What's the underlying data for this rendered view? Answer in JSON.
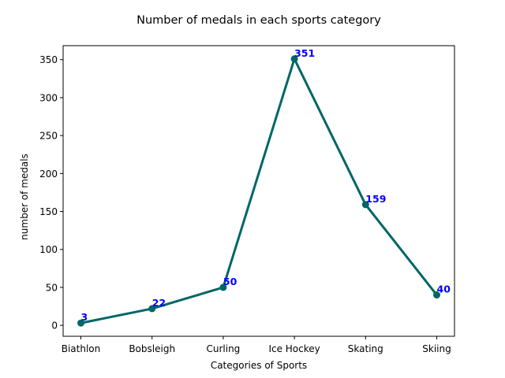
{
  "chart_data": {
    "type": "line",
    "title": "Number of medals in each sports category",
    "xlabel": "Categories of Sports",
    "ylabel": "number of medals",
    "categories": [
      "Biathlon",
      "Bobsleigh",
      "Curling",
      "Ice Hockey",
      "Skating",
      "Skiing"
    ],
    "series": [
      {
        "values": [
          3,
          22,
          50,
          351,
          159,
          40
        ]
      }
    ],
    "ylim": [
      -14.4,
      368.4
    ],
    "yticks": [
      0,
      50,
      100,
      150,
      200,
      250,
      300,
      350
    ],
    "grid": false,
    "legend": "none",
    "data_labels": true
  },
  "colors": {
    "line": "#006666",
    "marker": "#006666",
    "data_label": "#0000ff",
    "axes": "#000000",
    "background": "#ffffff"
  }
}
